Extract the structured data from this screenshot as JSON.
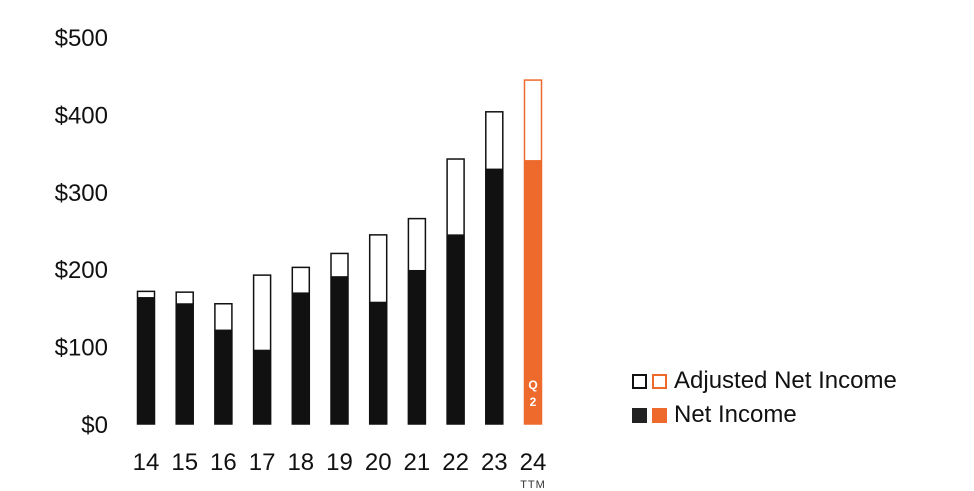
{
  "chart_data": {
    "type": "bar",
    "categories": [
      "14",
      "15",
      "16",
      "17",
      "18",
      "19",
      "20",
      "21",
      "22",
      "23",
      "24"
    ],
    "category_sublabels": {
      "24": "TTM"
    },
    "in_bar_label": {
      "category": "24",
      "text": "Q\n2"
    },
    "series": [
      {
        "name": "Net Income",
        "values": [
          164,
          156,
          122,
          96,
          170,
          191,
          158,
          199,
          245,
          330,
          341
        ]
      },
      {
        "name": "Adjusted Net Income",
        "values": [
          172,
          171,
          156,
          193,
          203,
          221,
          245,
          266,
          343,
          404,
          445
        ]
      }
    ],
    "y_tick_labels": [
      "$0",
      "$100",
      "$200",
      "$300",
      "$400",
      "$500"
    ],
    "ylim": [
      0,
      500
    ],
    "title": "",
    "xlabel": "",
    "ylabel": "",
    "grid": false,
    "legend_position": "right",
    "colors": {
      "base": "#111111",
      "highlight": "#ee6a2c",
      "highlight_category": "24"
    }
  },
  "legend": {
    "adjusted_label": "Adjusted Net Income",
    "net_label": "Net Income"
  }
}
